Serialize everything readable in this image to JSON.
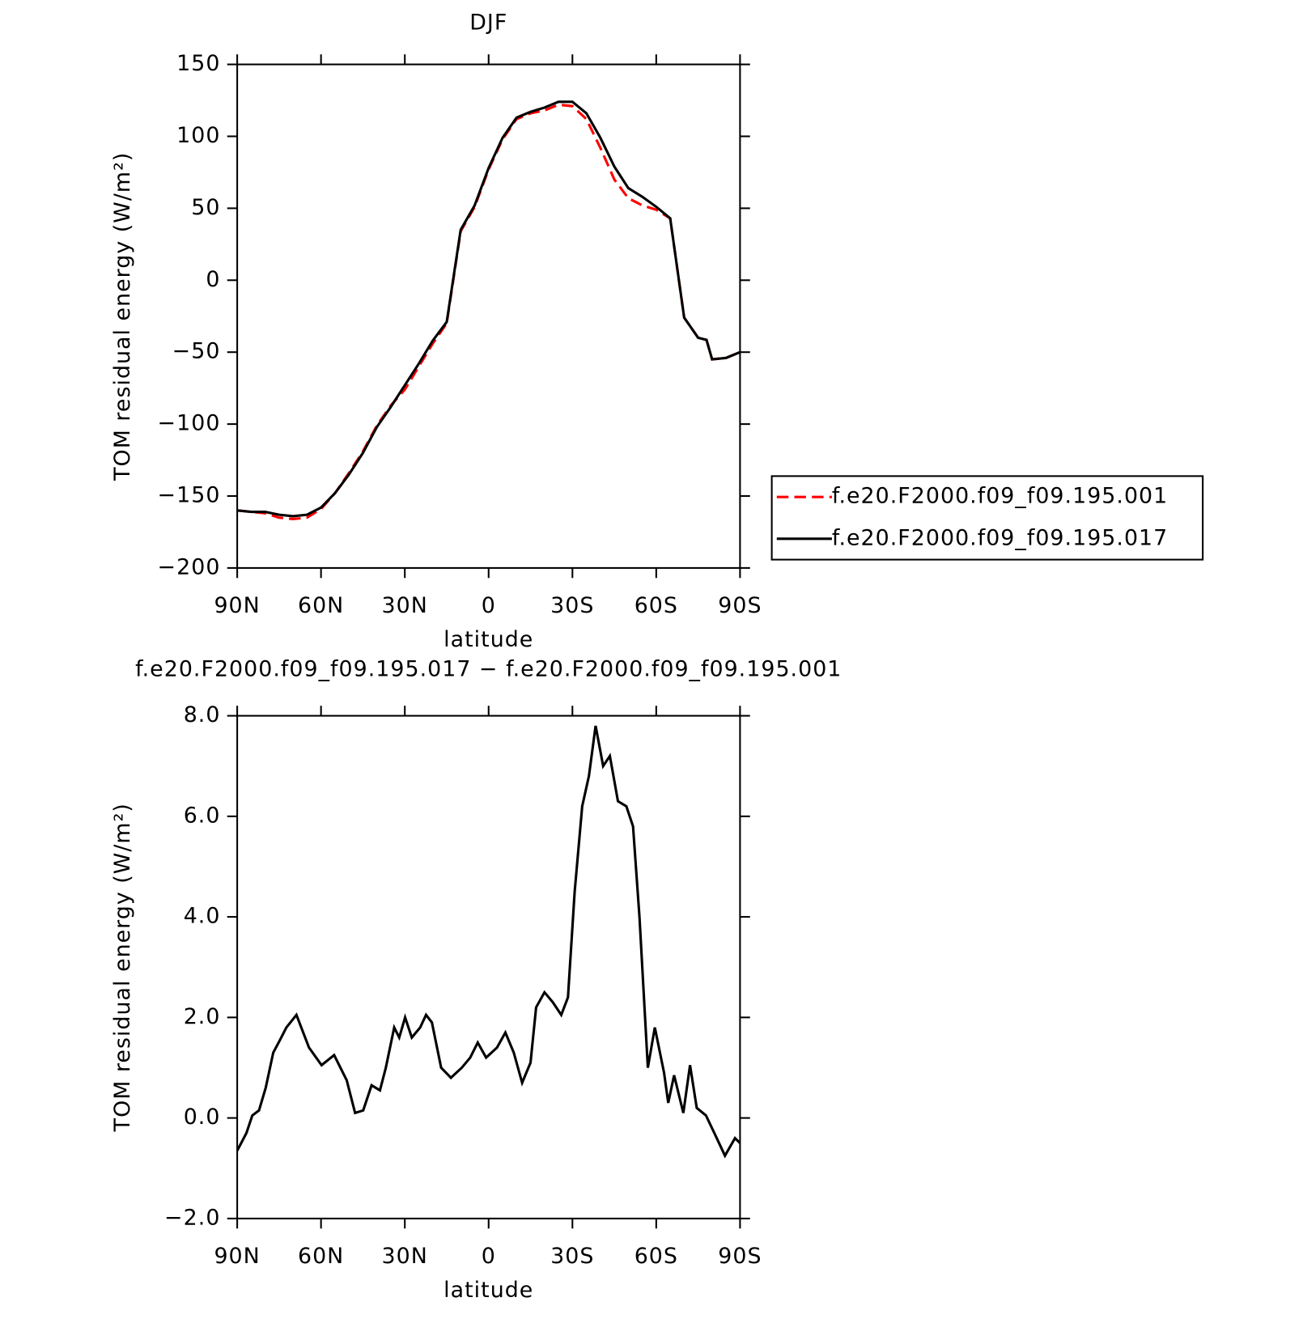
{
  "chart_data": [
    {
      "type": "line",
      "title": "DJF",
      "xlabel": "latitude",
      "ylabel": "TOM residual energy (W/m²)",
      "x": [
        90,
        85,
        80,
        75,
        70,
        65,
        60,
        55,
        50,
        45,
        40,
        35,
        30,
        25,
        20,
        15,
        10,
        5,
        0,
        -5,
        -10,
        -15,
        -20,
        -25,
        -30,
        -35,
        -40,
        -45,
        -50,
        -55,
        -60,
        -65,
        -70,
        -75,
        -78,
        -80,
        -85,
        -90
      ],
      "series": [
        {
          "name": "f.e20.F2000.f09_f09.195.001",
          "color": "#ff0000",
          "line_style": "dashed",
          "values": [
            -160,
            -161,
            -162,
            -165,
            -166,
            -165,
            -159,
            -148,
            -134,
            -119,
            -101,
            -87,
            -76,
            -60,
            -44,
            -30,
            34,
            51,
            77,
            98,
            112,
            116,
            118,
            122,
            121,
            112,
            92,
            70,
            57,
            52,
            49,
            43,
            -26,
            -40,
            -41.5,
            -55,
            -54,
            -50
          ]
        },
        {
          "name": "f.e20.F2000.f09_f09.195.017",
          "color": "#000000",
          "line_style": "solid",
          "values": [
            -160,
            -161,
            -161,
            -163,
            -164,
            -163,
            -158,
            -148,
            -135,
            -120,
            -102,
            -88,
            -73,
            -58,
            -42,
            -29,
            35,
            52,
            78,
            99,
            113,
            117,
            120,
            124,
            124,
            116,
            99,
            79,
            64,
            58,
            51,
            43,
            -26,
            -40,
            -41.5,
            -55,
            -54,
            -50
          ]
        }
      ],
      "xlim": [
        90,
        -90
      ],
      "xticks": [
        {
          "value": 90,
          "label": "90N"
        },
        {
          "value": 60,
          "label": "60N"
        },
        {
          "value": 30,
          "label": "30N"
        },
        0,
        {
          "value": -30,
          "label": "30S"
        },
        {
          "value": -60,
          "label": "60S"
        },
        {
          "value": -90,
          "label": "90S"
        }
      ],
      "ylim": [
        -200,
        150
      ],
      "yticks": [
        {
          "value": -200,
          "label": "−200"
        },
        {
          "value": -150,
          "label": "−150"
        },
        {
          "value": -100,
          "label": "−100"
        },
        {
          "value": -50,
          "label": "−50"
        },
        0,
        50,
        100,
        150
      ],
      "legend": "right"
    },
    {
      "type": "line",
      "title": "f.e20.F2000.f09_f09.195.017 − f.e20.F2000.f09_f09.195.001",
      "xlabel": "latitude",
      "ylabel": "TOM residual energy (W/m²)",
      "x": [
        90,
        86.7,
        84.6,
        82.2,
        79.8,
        77.1,
        74.7,
        72.4,
        68.8,
        64.3,
        59.8,
        55.3,
        50.8,
        47.8,
        44.9,
        41.9,
        38.9,
        36.8,
        33.8,
        32,
        29.9,
        27.5,
        24.5,
        22.4,
        20.3,
        17,
        13.5,
        9.6,
        6.6,
        3.9,
        0.9,
        -3,
        -6,
        -9,
        -12,
        -15,
        -17,
        -20,
        -23,
        -26,
        -28.4,
        -30.8,
        -33.5,
        -35.9,
        -38.3,
        -41,
        -43.4,
        -46.3,
        -49.3,
        -51.7,
        -54,
        -57,
        -59.5,
        -62.8,
        -64.3,
        -66.4,
        -69.7,
        -72.1,
        -74.5,
        -77.8,
        -80.8,
        -84.6,
        -88.2,
        -90
      ],
      "series": [
        {
          "color": "#000000",
          "line_style": "solid",
          "values": [
            -0.65,
            -0.3,
            0.05,
            0.15,
            0.6,
            1.3,
            1.55,
            1.8,
            2.05,
            1.4,
            1.05,
            1.25,
            0.75,
            0.1,
            0.15,
            0.65,
            0.55,
            1.0,
            1.8,
            1.6,
            2.0,
            1.6,
            1.8,
            2.05,
            1.9,
            1.0,
            0.8,
            1.0,
            1.2,
            1.5,
            1.2,
            1.4,
            1.7,
            1.3,
            0.7,
            1.1,
            2.2,
            2.5,
            2.3,
            2.05,
            2.4,
            4.5,
            6.2,
            6.8,
            7.8,
            7.0,
            7.2,
            6.3,
            6.2,
            5.8,
            4.0,
            1.0,
            1.8,
            0.9,
            0.3,
            0.85,
            0.1,
            1.05,
            0.2,
            0.05,
            -0.3,
            -0.75,
            -0.4,
            -0.5
          ]
        }
      ],
      "xlim": [
        90,
        -90
      ],
      "xticks": [
        {
          "value": 90,
          "label": "90N"
        },
        {
          "value": 60,
          "label": "60N"
        },
        {
          "value": 30,
          "label": "30N"
        },
        0,
        {
          "value": -30,
          "label": "30S"
        },
        {
          "value": -60,
          "label": "60S"
        },
        {
          "value": -90,
          "label": "90S"
        }
      ],
      "ylim": [
        -2,
        8
      ],
      "yticks": [
        {
          "value": -2,
          "label": "−2.0"
        },
        {
          "value": 0,
          "label": "0.0"
        },
        {
          "value": 2,
          "label": "2.0"
        },
        {
          "value": 4,
          "label": "4.0"
        },
        {
          "value": 6,
          "label": "6.0"
        },
        {
          "value": 8,
          "label": "8.0"
        }
      ]
    }
  ]
}
